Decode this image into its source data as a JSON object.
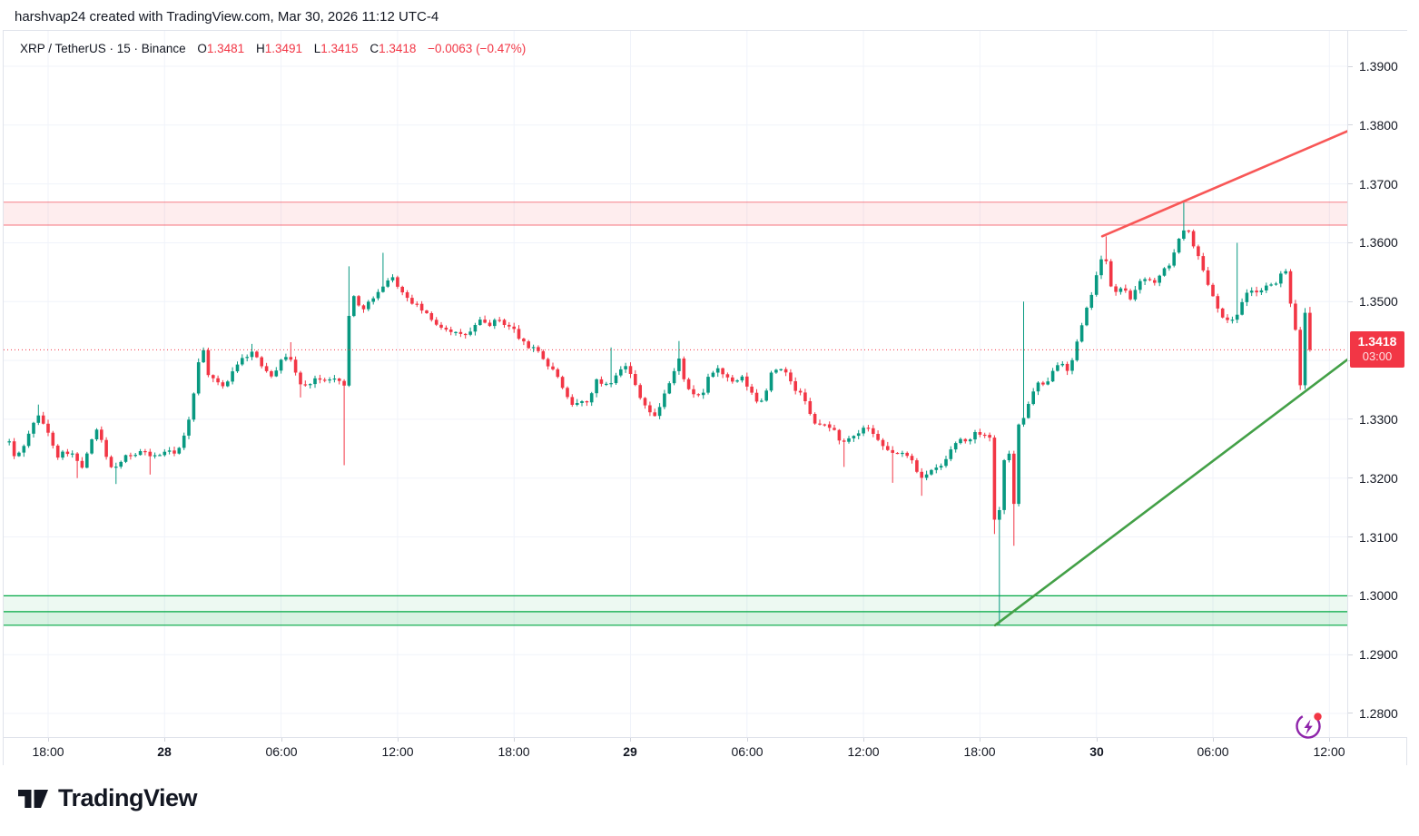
{
  "header": {
    "attribution": "harshvap24 created with TradingView.com, Mar 30, 2026 11:12 UTC-4"
  },
  "legend": {
    "symbol": "XRP / TetherUS · 15 · Binance",
    "o_label": "O",
    "o_value": "1.3481",
    "h_label": "H",
    "h_value": "1.3491",
    "l_label": "L",
    "l_value": "1.3415",
    "c_label": "C",
    "c_value": "1.3418",
    "change": "−0.0063 (−0.47%)"
  },
  "price_badge": {
    "price": "1.3418",
    "countdown": "03:00"
  },
  "logo": {
    "text": "TradingView"
  },
  "colors": {
    "up": "#089981",
    "down": "#f23645",
    "grid": "#f0f3fa",
    "border": "#e0e3eb",
    "text": "#131722",
    "zone_red_line": "rgba(242,54,69,0.55)",
    "zone_red_fill": "rgba(242,54,69,0.09)",
    "zone_green_line": "#00a843",
    "zone_green_fill_light": "rgba(0,168,67,0.07)",
    "zone_green_fill": "rgba(0,168,67,0.15)",
    "trend_red": "#f85757",
    "trend_green": "#43a047",
    "last_price_line": "#f23645",
    "flash_icon_purple": "#8e24aa",
    "flash_icon_dot": "#f23645"
  },
  "chart_data": {
    "type": "candlestick",
    "title": "XRP / TetherUS 15-minute chart on Binance",
    "symbol": "XRP / TetherUS",
    "interval_minutes": 15,
    "exchange": "Binance",
    "ohlc_last": {
      "open": 1.3481,
      "high": 1.3491,
      "low": 1.3415,
      "close": 1.3418,
      "change": -0.0063,
      "change_pct": -0.47
    },
    "last_price": 1.3418,
    "bar_close_countdown": "03:00",
    "y_axis": {
      "min": 1.276,
      "max": 1.396,
      "tick_labels": [
        "1.3900",
        "1.3800",
        "1.3700",
        "1.3600",
        "1.3500",
        "1.3400",
        "1.3300",
        "1.3200",
        "1.3100",
        "1.3000",
        "1.2900",
        "1.2800"
      ],
      "grid": true
    },
    "x_axis": {
      "grid": true,
      "ticks": [
        {
          "label": "18:00",
          "hour": 0,
          "bold": false
        },
        {
          "label": "28",
          "hour": 6,
          "bold": true
        },
        {
          "label": "06:00",
          "hour": 12,
          "bold": false
        },
        {
          "label": "12:00",
          "hour": 18,
          "bold": false
        },
        {
          "label": "18:00",
          "hour": 24,
          "bold": false
        },
        {
          "label": "29",
          "hour": 30,
          "bold": true
        },
        {
          "label": "06:00",
          "hour": 36,
          "bold": false
        },
        {
          "label": "12:00",
          "hour": 42,
          "bold": false
        },
        {
          "label": "18:00",
          "hour": 48,
          "bold": false
        },
        {
          "label": "30",
          "hour": 54,
          "bold": true
        },
        {
          "label": "06:00",
          "hour": 60,
          "bold": false
        },
        {
          "label": "12:00",
          "hour": 66,
          "bold": false
        }
      ]
    },
    "zones": {
      "resistance": {
        "top": 1.3669,
        "bottom": 1.363
      },
      "support": {
        "lines": [
          1.3,
          1.2973,
          1.295
        ]
      }
    },
    "trendlines": [
      {
        "name": "resistance-trendline",
        "color_key": "trend_red",
        "from": {
          "hour": 54.3,
          "price": 1.3611
        },
        "to": {
          "hour": 66.95,
          "price": 1.379
        }
      },
      {
        "name": "support-trendline",
        "color_key": "trend_green",
        "from": {
          "hour": 48.78,
          "price": 1.295
        },
        "to": {
          "hour": 66.95,
          "price": 1.3402
        }
      }
    ],
    "range_hours": [
      -2,
      65
    ],
    "candle_interval_hours": 0.25,
    "price_path": [
      [
        -2,
        1.3262
      ],
      [
        -1.75,
        1.3236
      ],
      [
        -1.4,
        1.3246
      ],
      [
        -1,
        1.3274
      ],
      [
        -0.7,
        1.33
      ],
      [
        -0.4,
        1.3306
      ],
      [
        -0.1,
        1.3282
      ],
      [
        0.2,
        1.3262
      ],
      [
        0.5,
        1.3238
      ],
      [
        0.9,
        1.3246
      ],
      [
        1.3,
        1.324
      ],
      [
        1.7,
        1.3214
      ],
      [
        2.1,
        1.3248
      ],
      [
        2.4,
        1.3284
      ],
      [
        2.7,
        1.327
      ],
      [
        3,
        1.3234
      ],
      [
        3.4,
        1.3214
      ],
      [
        3.7,
        1.3222
      ],
      [
        4,
        1.3242
      ],
      [
        4.4,
        1.3238
      ],
      [
        4.8,
        1.3246
      ],
      [
        5.2,
        1.324
      ],
      [
        5.6,
        1.3236
      ],
      [
        6,
        1.3246
      ],
      [
        6.4,
        1.3242
      ],
      [
        6.8,
        1.3252
      ],
      [
        7.2,
        1.3288
      ],
      [
        7.5,
        1.3345
      ],
      [
        7.75,
        1.34
      ],
      [
        8,
        1.3416
      ],
      [
        8.25,
        1.3378
      ],
      [
        8.6,
        1.3362
      ],
      [
        9,
        1.3356
      ],
      [
        9.3,
        1.3368
      ],
      [
        9.6,
        1.339
      ],
      [
        9.9,
        1.34
      ],
      [
        10.2,
        1.3408
      ],
      [
        10.5,
        1.3414
      ],
      [
        10.8,
        1.34
      ],
      [
        11.1,
        1.3388
      ],
      [
        11.5,
        1.3376
      ],
      [
        11.8,
        1.3388
      ],
      [
        12.1,
        1.3404
      ],
      [
        12.4,
        1.3412
      ],
      [
        12.75,
        1.3378
      ],
      [
        13,
        1.336
      ],
      [
        13.3,
        1.3356
      ],
      [
        13.7,
        1.337
      ],
      [
        14,
        1.3365
      ],
      [
        14.4,
        1.3372
      ],
      [
        14.8,
        1.3368
      ],
      [
        15.1,
        1.3362
      ],
      [
        15.3,
        1.3355
      ],
      [
        15.5,
        1.3478
      ],
      [
        15.75,
        1.3508
      ],
      [
        16.1,
        1.3486
      ],
      [
        16.5,
        1.3498
      ],
      [
        16.9,
        1.3508
      ],
      [
        17.3,
        1.3532
      ],
      [
        17.7,
        1.3542
      ],
      [
        18,
        1.3528
      ],
      [
        18.4,
        1.3506
      ],
      [
        18.8,
        1.3498
      ],
      [
        19.2,
        1.3488
      ],
      [
        19.7,
        1.347
      ],
      [
        20.2,
        1.3458
      ],
      [
        20.7,
        1.3452
      ],
      [
        21.2,
        1.3442
      ],
      [
        21.7,
        1.3446
      ],
      [
        22.2,
        1.3468
      ],
      [
        22.7,
        1.346
      ],
      [
        23.2,
        1.347
      ],
      [
        23.6,
        1.346
      ],
      [
        24,
        1.3452
      ],
      [
        24.4,
        1.3432
      ],
      [
        24.8,
        1.342
      ],
      [
        25.1,
        1.3426
      ],
      [
        25.4,
        1.3408
      ],
      [
        25.8,
        1.3388
      ],
      [
        26.2,
        1.3378
      ],
      [
        26.6,
        1.3342
      ],
      [
        27,
        1.3322
      ],
      [
        27.4,
        1.333
      ],
      [
        27.8,
        1.3328
      ],
      [
        28.2,
        1.3366
      ],
      [
        28.6,
        1.336
      ],
      [
        29,
        1.3364
      ],
      [
        29.4,
        1.3386
      ],
      [
        29.8,
        1.339
      ],
      [
        30.2,
        1.3362
      ],
      [
        30.6,
        1.3332
      ],
      [
        31,
        1.3312
      ],
      [
        31.3,
        1.3302
      ],
      [
        31.7,
        1.3342
      ],
      [
        32.1,
        1.3368
      ],
      [
        32.5,
        1.3402
      ],
      [
        32.9,
        1.3352
      ],
      [
        33.3,
        1.3338
      ],
      [
        33.7,
        1.3342
      ],
      [
        34.1,
        1.3378
      ],
      [
        34.5,
        1.3386
      ],
      [
        34.9,
        1.3372
      ],
      [
        35.3,
        1.336
      ],
      [
        35.7,
        1.3372
      ],
      [
        36.1,
        1.3352
      ],
      [
        36.5,
        1.333
      ],
      [
        36.9,
        1.3336
      ],
      [
        37.3,
        1.3388
      ],
      [
        37.7,
        1.3384
      ],
      [
        38.1,
        1.3374
      ],
      [
        38.5,
        1.335
      ],
      [
        38.9,
        1.334
      ],
      [
        39.3,
        1.3302
      ],
      [
        39.7,
        1.3288
      ],
      [
        40.1,
        1.3292
      ],
      [
        40.5,
        1.328
      ],
      [
        40.9,
        1.3258
      ],
      [
        41.3,
        1.3266
      ],
      [
        41.7,
        1.3272
      ],
      [
        42.1,
        1.329
      ],
      [
        42.5,
        1.3272
      ],
      [
        42.9,
        1.3256
      ],
      [
        43.3,
        1.3246
      ],
      [
        43.7,
        1.3242
      ],
      [
        44.1,
        1.324
      ],
      [
        44.5,
        1.3232
      ],
      [
        44.9,
        1.3202
      ],
      [
        45.3,
        1.3206
      ],
      [
        45.7,
        1.3216
      ],
      [
        46.1,
        1.3222
      ],
      [
        46.5,
        1.3248
      ],
      [
        46.9,
        1.3268
      ],
      [
        47.3,
        1.3262
      ],
      [
        47.7,
        1.3275
      ],
      [
        48.1,
        1.3278
      ],
      [
        48.5,
        1.327
      ],
      [
        48.75,
        1.313
      ],
      [
        49,
        1.3145
      ],
      [
        49.2,
        1.3222
      ],
      [
        49.45,
        1.3275
      ],
      [
        49.7,
        1.312
      ],
      [
        49.95,
        1.329
      ],
      [
        50.25,
        1.3302
      ],
      [
        50.6,
        1.3338
      ],
      [
        51,
        1.336
      ],
      [
        51.4,
        1.3354
      ],
      [
        51.8,
        1.339
      ],
      [
        52.2,
        1.34
      ],
      [
        52.6,
        1.338
      ],
      [
        53,
        1.343
      ],
      [
        53.4,
        1.3475
      ],
      [
        53.8,
        1.352
      ],
      [
        54.1,
        1.356
      ],
      [
        54.4,
        1.3583
      ],
      [
        54.7,
        1.353
      ],
      [
        55,
        1.3515
      ],
      [
        55.4,
        1.3524
      ],
      [
        55.8,
        1.3504
      ],
      [
        56.2,
        1.353
      ],
      [
        56.6,
        1.3544
      ],
      [
        57,
        1.353
      ],
      [
        57.4,
        1.355
      ],
      [
        57.8,
        1.3566
      ],
      [
        58.2,
        1.36
      ],
      [
        58.6,
        1.3632
      ],
      [
        58.9,
        1.3606
      ],
      [
        59.2,
        1.358
      ],
      [
        59.6,
        1.3544
      ],
      [
        60,
        1.351
      ],
      [
        60.4,
        1.348
      ],
      [
        60.8,
        1.3464
      ],
      [
        61.2,
        1.3476
      ],
      [
        61.6,
        1.351
      ],
      [
        62,
        1.352
      ],
      [
        62.4,
        1.3514
      ],
      [
        62.8,
        1.353
      ],
      [
        63.2,
        1.3524
      ],
      [
        63.6,
        1.3558
      ],
      [
        63.85,
        1.3545
      ],
      [
        64,
        1.35
      ],
      [
        64.25,
        1.3455
      ],
      [
        64.5,
        1.336
      ],
      [
        64.75,
        1.3481
      ],
      [
        65,
        1.3418
      ]
    ],
    "wick_events": [
      [
        -0.5,
        "high",
        1.3325
      ],
      [
        1.6,
        "low",
        1.32
      ],
      [
        3.5,
        "low",
        1.319
      ],
      [
        5.3,
        "low",
        1.3206
      ],
      [
        8,
        "high",
        1.3422
      ],
      [
        10.5,
        "high",
        1.3428
      ],
      [
        12.4,
        "high",
        1.3431
      ],
      [
        12.9,
        "low",
        1.3337
      ],
      [
        15.25,
        "low",
        1.3222
      ],
      [
        15.5,
        "high",
        1.356
      ],
      [
        17.25,
        "high",
        1.3583
      ],
      [
        29,
        "high",
        1.3422
      ],
      [
        32.6,
        "high",
        1.3433
      ],
      [
        41,
        "low",
        1.3219
      ],
      [
        43.4,
        "low",
        1.3192
      ],
      [
        45,
        "low",
        1.317
      ],
      [
        48.75,
        "low",
        1.3105
      ],
      [
        49,
        "low",
        1.295
      ],
      [
        49.7,
        "low",
        1.3085
      ],
      [
        50.25,
        "high",
        1.35
      ],
      [
        54.4,
        "high",
        1.3611
      ],
      [
        58.6,
        "high",
        1.367
      ],
      [
        61.25,
        "high",
        1.36
      ],
      [
        64.5,
        "low",
        1.335
      ],
      [
        64.75,
        "high",
        1.3489
      ]
    ]
  }
}
